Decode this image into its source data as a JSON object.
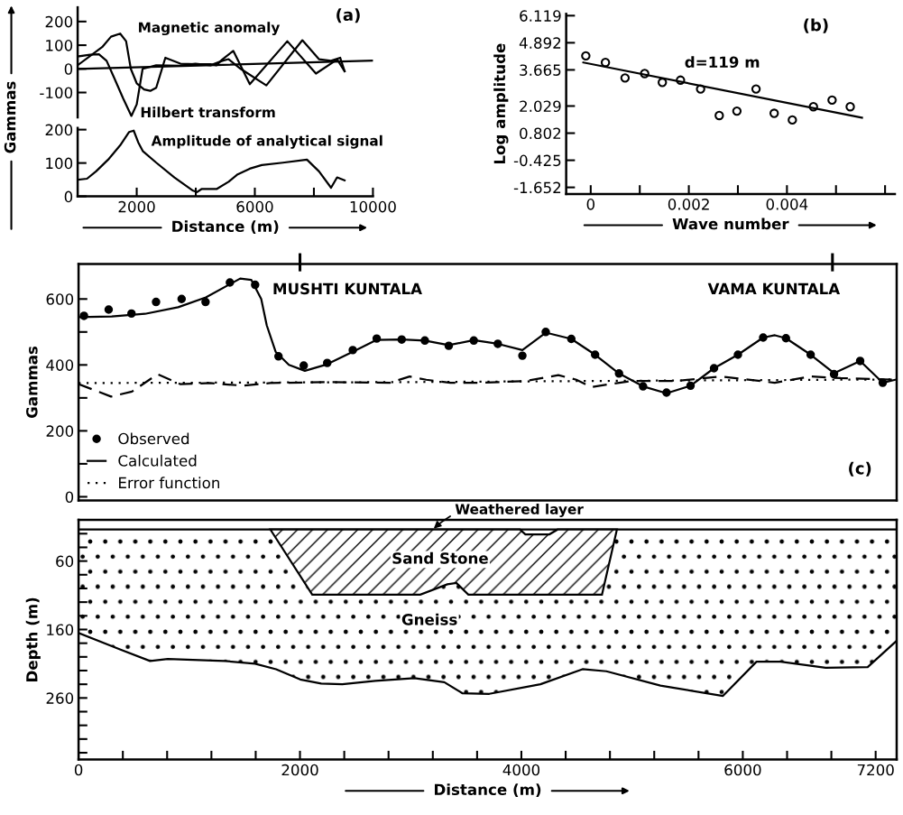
{
  "chart_data": [
    {
      "type": "line",
      "title": "(a)",
      "ylabel": "Gammas",
      "xlim": [
        0,
        10000
      ],
      "ylim": [
        -205,
        260
      ],
      "yticks": [
        -100,
        0,
        100,
        200
      ],
      "tick_labels": "y",
      "series": [
        {
          "name": "Magnetic anomaly",
          "color": "#000000",
          "x": [
            30,
            830,
            1130,
            1440,
            1640,
            1800,
            2000,
            2250,
            2460,
            2660,
            2970,
            3480,
            3990,
            4500,
            4700,
            4900,
            5270,
            5830,
            7100,
            8070,
            8790,
            9040
          ],
          "values": [
            18,
            92,
            136,
            149,
            117,
            0,
            -61,
            -87,
            -93,
            -80,
            47,
            22,
            20,
            20,
            15,
            40,
            76,
            -65,
            117,
            -20,
            40,
            -10
          ]
        },
        {
          "name": "Hilbert transform",
          "color": "#000000",
          "x": [
            30,
            420,
            720,
            980,
            1230,
            1540,
            1820,
            2000,
            2200,
            2660,
            3480,
            3990,
            4500,
            4900,
            5110,
            5520,
            6390,
            7610,
            8170,
            8580,
            8890,
            9040
          ],
          "values": [
            53,
            60,
            62,
            34,
            -36,
            -125,
            -199,
            -150,
            0,
            15,
            13,
            22,
            15,
            34,
            41,
            0,
            -70,
            121,
            41,
            34,
            47,
            -10
          ]
        },
        {
          "color": "#000000",
          "x": [
            0,
            10000
          ],
          "values": [
            0,
            35
          ]
        }
      ]
    },
    {
      "type": "line",
      "xlabel": "Distance (m)",
      "xlim": [
        0,
        10000
      ],
      "ylim": [
        0,
        205
      ],
      "xticks": [
        2000,
        {
          "value": 4000,
          "label": null
        },
        6000,
        {
          "value": 8000,
          "label": null
        },
        10000
      ],
      "yticks": [
        0,
        100,
        200
      ],
      "series": [
        {
          "name": "Amplitude of analytical signal",
          "color": "#000000",
          "x": [
            31,
            316,
            622,
            1031,
            1439,
            1745,
            1898,
            2051,
            2204,
            2663,
            3276,
            3888,
            4041,
            4194,
            4704,
            5112,
            5418,
            5827,
            6235,
            6949,
            7765,
            8173,
            8582,
            8786,
            9041
          ],
          "values": [
            50,
            53,
            75,
            110,
            153,
            193,
            197,
            162,
            136,
            101,
            57,
            18,
            13,
            22,
            22,
            44,
            66,
            83,
            94,
            101,
            110,
            75,
            26,
            57,
            48
          ]
        }
      ]
    },
    {
      "type": "scatter",
      "title": "(b)",
      "xlabel": "Wave number",
      "ylabel": "Log amplitude",
      "xlim": [
        -0.0005,
        0.0062
      ],
      "ylim": [
        -1.95,
        6.2
      ],
      "xticks": [
        0,
        {
          "value": 0.001,
          "label": null
        },
        0.002,
        {
          "value": 0.003,
          "label": null
        },
        0.004,
        {
          "value": 0.005,
          "label": null
        },
        {
          "value": 0.006,
          "label": null
        }
      ],
      "yticks": [
        -1.652,
        -0.425,
        0.802,
        2.029,
        3.665,
        4.892,
        6.119
      ],
      "annotations": [
        "d=119 m"
      ],
      "series": [
        {
          "type": "scatter",
          "color": "#000000",
          "marker": "circle",
          "x": [
            -0.0001,
            0.0003,
            0.0007,
            0.0011,
            0.00146,
            0.00183,
            0.00224,
            0.00262,
            0.00298,
            0.00337,
            0.00374,
            0.00411,
            0.00454,
            0.00492,
            0.00529
          ],
          "values": [
            4.3,
            4.0,
            3.3,
            3.5,
            3.1,
            3.2,
            2.8,
            1.6,
            1.8,
            2.8,
            1.7,
            1.4,
            2.0,
            2.3,
            2.0
          ]
        },
        {
          "type": "line",
          "color": "#000000",
          "x": [
            -0.00015,
            0.00553
          ],
          "values": [
            4.0,
            1.5
          ]
        }
      ]
    },
    {
      "type": "line",
      "title": "(c)",
      "ylabel": "Gammas",
      "xlim": [
        0,
        7390
      ],
      "ylim": [
        -11,
        706
      ],
      "yticks": [
        0,
        {
          "value": 100,
          "label": null
        },
        200,
        {
          "value": 300,
          "label": null
        },
        400,
        {
          "value": 500,
          "label": null
        },
        600
      ],
      "tick_labels": "y",
      "legend": "bottom left",
      "ref_lines": [
        {
          "axis": "x",
          "value": 2000,
          "label": "MUSHTI KUNTALA"
        },
        {
          "axis": "x",
          "value": 6810,
          "label": "VAMA KUNTALA"
        }
      ],
      "series": [
        {
          "name": "Observed",
          "type": "scatter",
          "color": "#000000",
          "marker": "circle",
          "x": [
            49,
            272,
            478,
            700,
            931,
            1147,
            1367,
            1595,
            1806,
            2034,
            2246,
            2477,
            2693,
            2919,
            3128,
            3344,
            3570,
            3787,
            4009,
            4220,
            4451,
            4666,
            4882,
            5099,
            5311,
            5528,
            5740,
            5956,
            6184,
            6390,
            6613,
            6824,
            7060,
            7264
          ],
          "values": [
            549,
            568,
            556,
            591,
            600,
            591,
            650,
            643,
            426,
            398,
            406,
            445,
            480,
            477,
            474,
            458,
            474,
            464,
            428,
            500,
            479,
            431,
            374,
            335,
            316,
            337,
            390,
            431,
            483,
            481,
            431,
            372,
            412,
            346
          ]
        },
        {
          "name": "Calculated",
          "color": "#000000",
          "line_style": "solid",
          "x": [
            0,
            300,
            600,
            900,
            1150,
            1367,
            1460,
            1560,
            1650,
            1700,
            1780,
            1900,
            2044,
            2246,
            2477,
            2693,
            2919,
            3128,
            3344,
            3570,
            3787,
            4009,
            4220,
            4451,
            4666,
            4882,
            5099,
            5311,
            5528,
            5740,
            5956,
            6184,
            6290,
            6390,
            6613,
            6824,
            7060,
            7264,
            7377
          ],
          "values": [
            545,
            547,
            555,
            575,
            605,
            645,
            662,
            658,
            600,
            520,
            440,
            400,
            382,
            402,
            440,
            476,
            477,
            474,
            460,
            475,
            464,
            445,
            498,
            479,
            431,
            374,
            335,
            314,
            337,
            390,
            431,
            483,
            490,
            481,
            431,
            375,
            412,
            346,
            355
          ]
        },
        {
          "name": "Error function",
          "color": "#000000",
          "line_style": "dotted",
          "x": [
            0,
            3000,
            5000,
            7377
          ],
          "values": [
            345,
            348,
            352,
            356
          ]
        },
        {
          "color": "#000000",
          "line_style": "dashed",
          "x": [
            0,
            293,
            482,
            714,
            917,
            1188,
            1486,
            1730,
            2273,
            2815,
            2991,
            3141,
            3358,
            3630,
            4036,
            4334,
            4497,
            4632,
            4985,
            5392,
            5800,
            6288,
            6613,
            6884,
            7372
          ],
          "values": [
            342,
            304,
            319,
            372,
            342,
            345,
            337,
            345,
            348,
            346,
            365,
            355,
            346,
            346,
            351,
            369,
            355,
            333,
            351,
            351,
            365,
            346,
            365,
            360,
            355
          ]
        }
      ]
    },
    {
      "type": "line",
      "xlabel": "Distance (m)",
      "ylabel": "Depth (m)",
      "xlim": [
        0,
        7390
      ],
      "ylim": [
        350,
        0
      ],
      "xticks": [
        0,
        {
          "value": 400,
          "label": null
        },
        {
          "value": 800,
          "label": null
        },
        {
          "value": 1200,
          "label": null
        },
        {
          "value": 1600,
          "label": null
        },
        2000,
        {
          "value": 2400,
          "label": null
        },
        {
          "value": 2800,
          "label": null
        },
        {
          "value": 3200,
          "label": null
        },
        {
          "value": 3600,
          "label": null
        },
        4000,
        {
          "value": 4400,
          "label": null
        },
        {
          "value": 4800,
          "label": null
        },
        {
          "value": 5200,
          "label": null
        },
        {
          "value": 5600,
          "label": null
        },
        6000,
        {
          "value": 6400,
          "label": null
        },
        {
          "value": 6800,
          "label": null
        },
        7200
      ],
      "yticks": [
        {
          "value": 20,
          "label": null
        },
        {
          "value": 40,
          "label": null
        },
        60,
        {
          "value": 80,
          "label": null
        },
        {
          "value": 100,
          "label": null
        },
        {
          "value": 120,
          "label": null
        },
        {
          "value": 140,
          "label": null
        },
        160,
        {
          "value": 180,
          "label": null
        },
        {
          "value": 200,
          "label": null
        },
        {
          "value": 220,
          "label": null
        },
        {
          "value": 240,
          "label": null
        },
        260,
        {
          "value": 280,
          "label": null
        },
        {
          "value": 300,
          "label": null
        },
        {
          "value": 320,
          "label": null
        },
        {
          "value": 340,
          "label": null
        }
      ],
      "annotations": [
        {
          "text": "Weathered layer",
          "x": 3200,
          "y": 14
        },
        "Sand Stone",
        "Gneiss"
      ],
      "series": [
        {
          "color": "#000000",
          "x": [
            0,
            7390
          ],
          "values": [
            14,
            14
          ]
        },
        {
          "type": "area",
          "color": "#000000",
          "x": [
            1733,
            2111,
            3087,
            3331,
            3413,
            3521,
            4728,
            4863,
            4327,
            4253,
            4036,
            3987,
            1733
          ],
          "values": [
            14,
            109,
            109,
            94,
            92,
            109,
            109,
            14,
            14,
            21,
            21,
            14,
            14
          ]
        },
        {
          "color": "#000000",
          "x": [
            0,
            374,
            646,
            806,
            1322,
            1594,
            1784,
            2002,
            2192,
            2382,
            2680,
            3033,
            3304,
            3466,
            3710,
            4172,
            4552,
            4768,
            5256,
            5821,
            6124,
            6341,
            6749,
            7128,
            7386
          ],
          "values": [
            165,
            189,
            206,
            203,
            206,
            210,
            218,
            233,
            239,
            240,
            235,
            231,
            237,
            253,
            254,
            240,
            218,
            221,
            242,
            257,
            207,
            207,
            216,
            215,
            177
          ],
          "lower": [
            14,
            14,
            14,
            14,
            14,
            14,
            14,
            14,
            14,
            14,
            14,
            14,
            14,
            14,
            14,
            14,
            14,
            14,
            14,
            14,
            14,
            14,
            14,
            14,
            14
          ],
          "upper": [
            165,
            189,
            206,
            203,
            206,
            210,
            218,
            233,
            239,
            240,
            235,
            231,
            237,
            253,
            254,
            240,
            218,
            221,
            242,
            257,
            207,
            207,
            216,
            215,
            177
          ]
        }
      ]
    }
  ]
}
